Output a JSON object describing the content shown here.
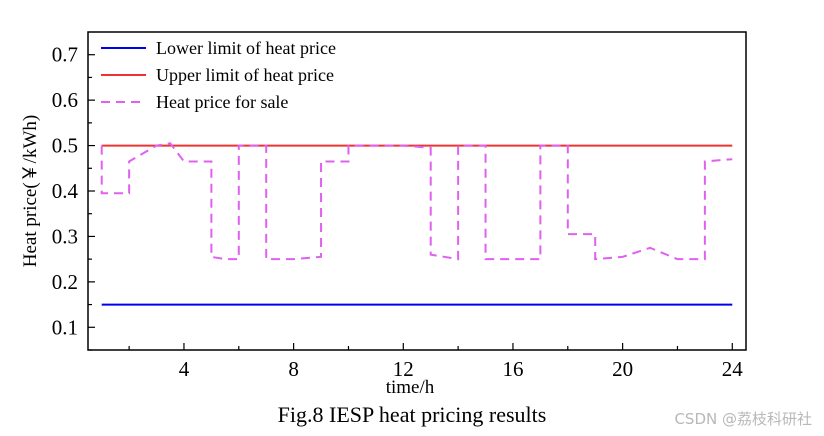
{
  "chart_data": {
    "type": "line",
    "xlabel": "time/h",
    "ylabel": "Heat price(￥/kWh)",
    "xlim": [
      0.5,
      24.5
    ],
    "ylim": [
      0.05,
      0.75
    ],
    "xticks": [
      4,
      8,
      12,
      16,
      20,
      24
    ],
    "yticks": [
      0.1,
      0.2,
      0.3,
      0.4,
      0.5,
      0.6,
      0.7
    ],
    "grid": false,
    "legend_position": "top-left",
    "series": [
      {
        "name": "Lower limit of heat price",
        "color": "#0000ee",
        "style": "solid",
        "x": [
          1,
          24
        ],
        "y": [
          0.15,
          0.15
        ]
      },
      {
        "name": "Upper limit of heat price",
        "color": "#ee3333",
        "style": "solid",
        "x": [
          1,
          24
        ],
        "y": [
          0.5,
          0.5
        ]
      },
      {
        "name": "Heat price for sale",
        "color": "#e060f0",
        "style": "dashed",
        "x": [
          1,
          1,
          1.5,
          2,
          2,
          3,
          3.5,
          4,
          4,
          5,
          5,
          5.5,
          6,
          6,
          7,
          7,
          8,
          9,
          9,
          10,
          10,
          11,
          12,
          13,
          13,
          14,
          14,
          15,
          15,
          16,
          17,
          17,
          18,
          18,
          19,
          19,
          20,
          21,
          22,
          23,
          23,
          24
        ],
        "y": [
          0.5,
          0.395,
          0.395,
          0.395,
          0.465,
          0.5,
          0.505,
          0.465,
          0.465,
          0.465,
          0.255,
          0.25,
          0.25,
          0.5,
          0.5,
          0.25,
          0.25,
          0.255,
          0.465,
          0.465,
          0.5,
          0.5,
          0.5,
          0.495,
          0.26,
          0.25,
          0.5,
          0.5,
          0.25,
          0.25,
          0.25,
          0.5,
          0.5,
          0.305,
          0.305,
          0.25,
          0.255,
          0.275,
          0.25,
          0.25,
          0.465,
          0.47
        ]
      }
    ]
  },
  "caption": "Fig.8 IESP heat pricing results",
  "watermark": "CSDN @荔枝科研社"
}
